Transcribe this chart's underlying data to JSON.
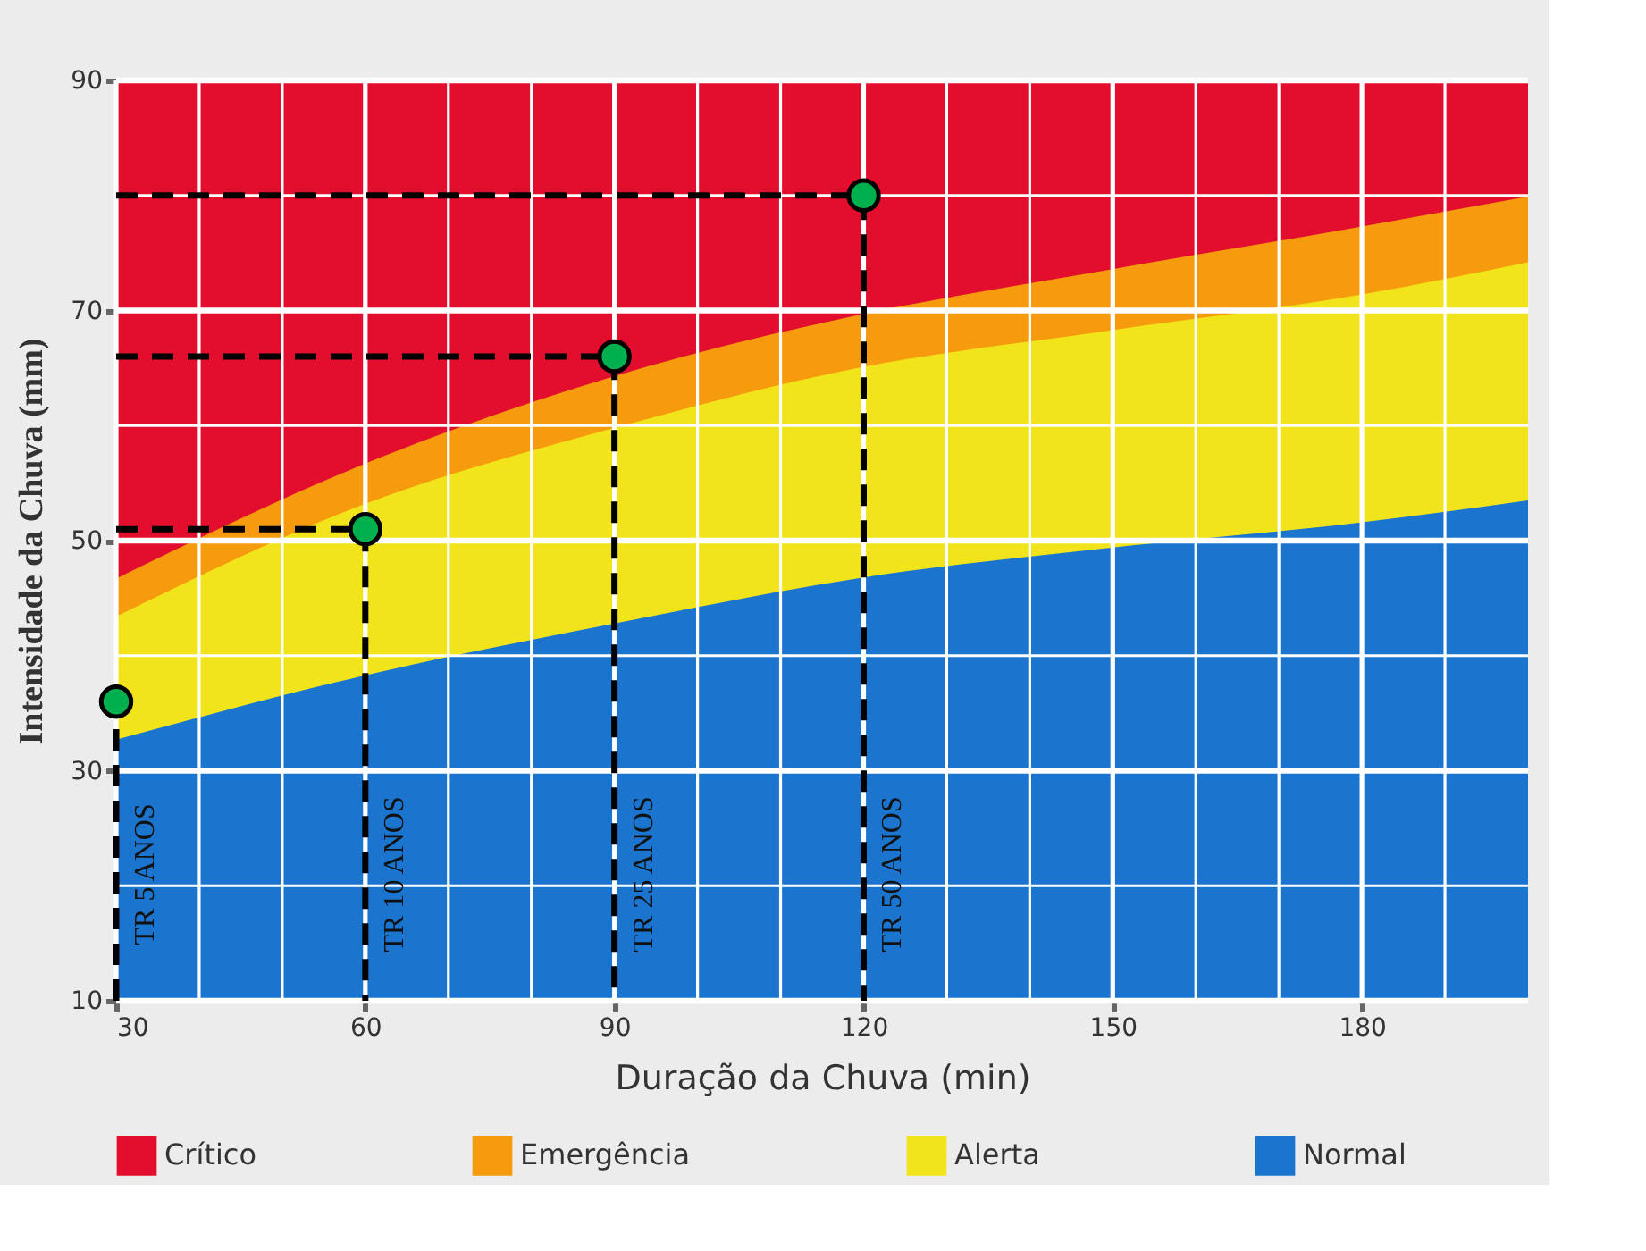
{
  "chart_data": {
    "type": "area",
    "xlabel": "Duração da Chuva (min)",
    "ylabel": "Intensidade da Chuva (mm)",
    "x": [
      30,
      60,
      90,
      120,
      150,
      180,
      200
    ],
    "xlim": [
      30,
      200
    ],
    "ylim": [
      10,
      90
    ],
    "xticks": [
      30,
      {
        "value": 40,
        "label": null
      },
      {
        "value": 50,
        "label": null
      },
      60,
      {
        "value": 70,
        "label": null
      },
      {
        "value": 80,
        "label": null
      },
      90,
      {
        "value": 100,
        "label": null
      },
      {
        "value": 110,
        "label": null
      },
      120,
      {
        "value": 130,
        "label": null
      },
      {
        "value": 140,
        "label": null
      },
      150,
      {
        "value": 160,
        "label": null
      },
      {
        "value": 170,
        "label": null
      },
      180,
      {
        "value": 190,
        "label": null
      }
    ],
    "yticks": [
      10,
      {
        "value": 20,
        "label": null
      },
      30,
      {
        "value": 40,
        "label": null
      },
      50,
      {
        "value": 60,
        "label": null
      },
      70,
      {
        "value": 80,
        "label": null
      },
      90
    ],
    "grid": true,
    "legend": "bottom",
    "series": [
      {
        "name": "Crítico",
        "color": "#e30d2e",
        "values": [
          90,
          90,
          90,
          90,
          90,
          90,
          90
        ]
      },
      {
        "name": "Emergência",
        "color": "#f79b0e",
        "values": [
          46.7,
          56.7,
          64.3,
          69.7,
          73.6,
          77.3,
          79.9
        ]
      },
      {
        "name": "Alerta",
        "color": "#f2e41a",
        "values": [
          43.4,
          53.2,
          59.8,
          65.1,
          68.3,
          71.4,
          74.2
        ]
      },
      {
        "name": "Normal",
        "color": "#1b75cf",
        "values": [
          32.7,
          38.3,
          42.8,
          46.8,
          49.4,
          51.6,
          53.5
        ]
      },
      {
        "type": "line",
        "color": "#000000",
        "line_style": "dashed",
        "marker": "none",
        "x": [
          30,
          30
        ],
        "values": [
          10,
          36
        ]
      },
      {
        "type": "line",
        "color": "#000000",
        "line_style": "dashed",
        "marker": "none",
        "x": [
          30,
          60,
          60
        ],
        "values": [
          51,
          51,
          10
        ]
      },
      {
        "type": "line",
        "color": "#000000",
        "line_style": "dashed",
        "marker": "none",
        "x": [
          30,
          90,
          90
        ],
        "values": [
          66,
          66,
          10
        ]
      },
      {
        "type": "line",
        "color": "#000000",
        "line_style": "dashed",
        "marker": "none",
        "x": [
          30,
          120,
          120
        ],
        "values": [
          80,
          80,
          10
        ]
      },
      {
        "type": "scatter",
        "color": "#00b04f",
        "marker": "circle",
        "x": [
          30,
          60,
          90,
          120
        ],
        "values": [
          36,
          51,
          66,
          80
        ]
      }
    ],
    "annotations": [
      {
        "text": "TR 5 ANOS",
        "x": 30,
        "y": 21
      },
      {
        "text": "TR 10 ANOS",
        "x": 60,
        "y": 21
      },
      {
        "text": "TR 25 ANOS",
        "x": 90,
        "y": 21
      },
      {
        "text": "TR 50 ANOS",
        "x": 120,
        "y": 21
      }
    ]
  }
}
